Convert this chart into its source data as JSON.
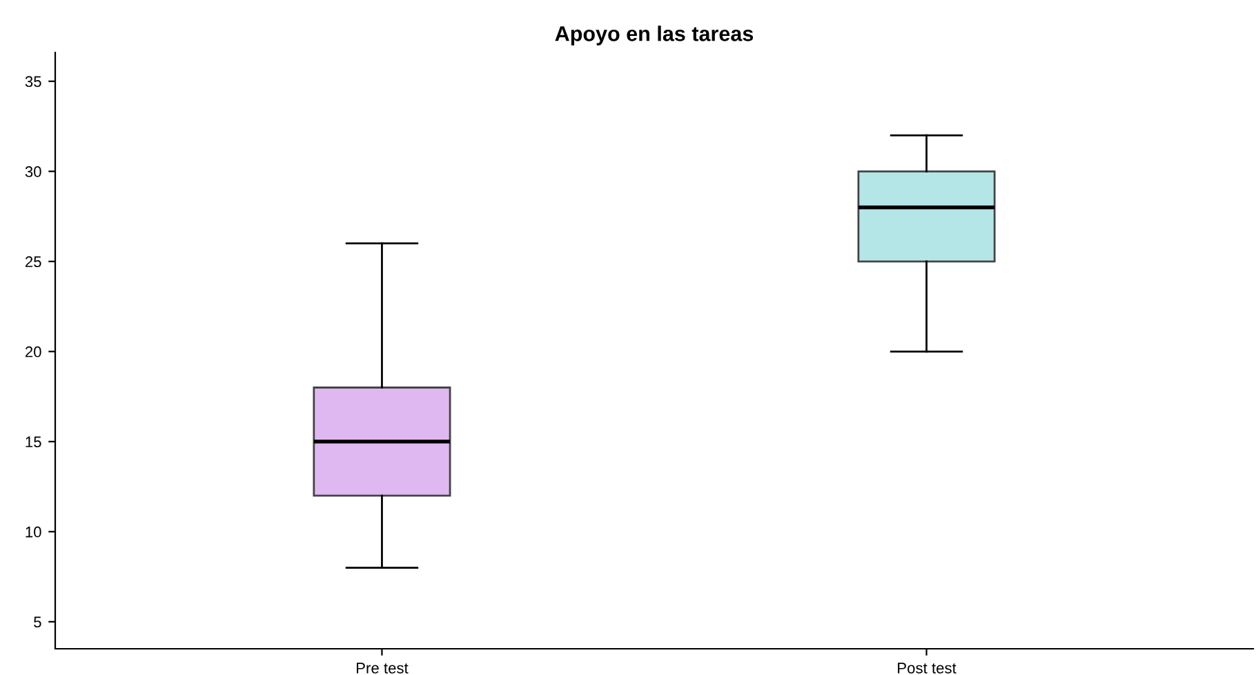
{
  "chart_data": {
    "type": "box",
    "title": "Apoyo en las tareas",
    "categories": [
      "Pre test",
      "Post test"
    ],
    "colors": [
      "#dfb8f2",
      "#b4e6e8"
    ],
    "boxes": [
      {
        "low": 8,
        "q1": 12,
        "median": 15,
        "q3": 18,
        "high": 26
      },
      {
        "low": 20,
        "q1": 25,
        "median": 28,
        "q3": 30,
        "high": 32
      }
    ],
    "ylim": [
      3.5,
      36.6
    ],
    "yticks": [
      5,
      10,
      15,
      20,
      25,
      30,
      35
    ],
    "grid": false
  }
}
